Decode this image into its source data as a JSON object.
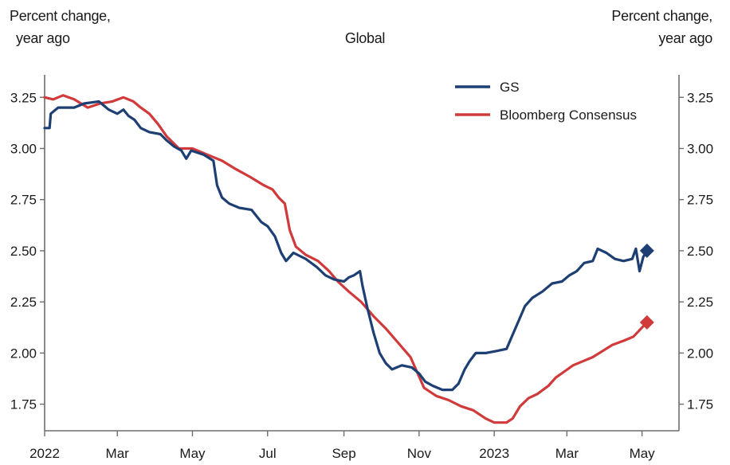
{
  "chart_data": {
    "type": "line",
    "title": "Global",
    "ylabel_left": [
      "Percent change,",
      "year ago"
    ],
    "ylabel_right": [
      "Percent change,",
      "year ago"
    ],
    "ylim": [
      1.62,
      3.36
    ],
    "yticks": [
      "3.25",
      "3.00",
      "2.75",
      "2.50",
      "2.25",
      "2.00",
      "1.75"
    ],
    "ytick_values": [
      3.25,
      3.0,
      2.75,
      2.5,
      2.25,
      2.0,
      1.75
    ],
    "x_domain": [
      "2022-01-01",
      "2023-05-31"
    ],
    "xticks": [
      {
        "date": "2022-01-01",
        "label": "2022"
      },
      {
        "date": "2022-03-01",
        "label": "Mar"
      },
      {
        "date": "2022-05-01",
        "label": "May"
      },
      {
        "date": "2022-07-01",
        "label": "Jul"
      },
      {
        "date": "2022-09-01",
        "label": "Sep"
      },
      {
        "date": "2022-11-01",
        "label": "Nov"
      },
      {
        "date": "2023-01-01",
        "label": "2023"
      },
      {
        "date": "2023-03-01",
        "label": "Mar"
      },
      {
        "date": "2023-05-01",
        "label": "May"
      }
    ],
    "legend_position": "top-right",
    "series": [
      {
        "name": "GS",
        "color": "#1d3f73",
        "points": [
          [
            "2022-01-01",
            3.1
          ],
          [
            "2022-01-05",
            3.1
          ],
          [
            "2022-01-06",
            3.17
          ],
          [
            "2022-01-12",
            3.2
          ],
          [
            "2022-01-25",
            3.2
          ],
          [
            "2022-02-02",
            3.22
          ],
          [
            "2022-02-14",
            3.23
          ],
          [
            "2022-02-22",
            3.19
          ],
          [
            "2022-03-01",
            3.17
          ],
          [
            "2022-03-06",
            3.19
          ],
          [
            "2022-03-10",
            3.16
          ],
          [
            "2022-03-15",
            3.14
          ],
          [
            "2022-03-20",
            3.1
          ],
          [
            "2022-03-27",
            3.08
          ],
          [
            "2022-04-05",
            3.07
          ],
          [
            "2022-04-10",
            3.04
          ],
          [
            "2022-04-16",
            3.01
          ],
          [
            "2022-04-22",
            2.99
          ],
          [
            "2022-04-26",
            2.95
          ],
          [
            "2022-04-30",
            2.99
          ],
          [
            "2022-05-10",
            2.97
          ],
          [
            "2022-05-18",
            2.94
          ],
          [
            "2022-05-21",
            2.82
          ],
          [
            "2022-05-25",
            2.76
          ],
          [
            "2022-05-31",
            2.73
          ],
          [
            "2022-06-08",
            2.71
          ],
          [
            "2022-06-18",
            2.7
          ],
          [
            "2022-06-26",
            2.64
          ],
          [
            "2022-07-01",
            2.62
          ],
          [
            "2022-07-07",
            2.57
          ],
          [
            "2022-07-12",
            2.49
          ],
          [
            "2022-07-16",
            2.45
          ],
          [
            "2022-07-22",
            2.49
          ],
          [
            "2022-08-01",
            2.46
          ],
          [
            "2022-08-10",
            2.42
          ],
          [
            "2022-08-17",
            2.38
          ],
          [
            "2022-08-24",
            2.36
          ],
          [
            "2022-09-01",
            2.35
          ],
          [
            "2022-09-05",
            2.37
          ],
          [
            "2022-09-09",
            2.38
          ],
          [
            "2022-09-14",
            2.4
          ],
          [
            "2022-09-16",
            2.33
          ],
          [
            "2022-09-20",
            2.22
          ],
          [
            "2022-09-25",
            2.1
          ],
          [
            "2022-09-30",
            2.0
          ],
          [
            "2022-10-05",
            1.95
          ],
          [
            "2022-10-10",
            1.92
          ],
          [
            "2022-10-18",
            1.94
          ],
          [
            "2022-10-26",
            1.93
          ],
          [
            "2022-11-01",
            1.9
          ],
          [
            "2022-11-06",
            1.86
          ],
          [
            "2022-11-12",
            1.84
          ],
          [
            "2022-11-20",
            1.82
          ],
          [
            "2022-11-28",
            1.82
          ],
          [
            "2022-12-03",
            1.85
          ],
          [
            "2022-12-08",
            1.92
          ],
          [
            "2022-12-12",
            1.96
          ],
          [
            "2022-12-17",
            2.0
          ],
          [
            "2022-12-25",
            2.0
          ],
          [
            "2023-01-03",
            2.01
          ],
          [
            "2023-01-11",
            2.02
          ],
          [
            "2023-01-16",
            2.09
          ],
          [
            "2023-01-21",
            2.16
          ],
          [
            "2023-01-26",
            2.23
          ],
          [
            "2023-02-01",
            2.27
          ],
          [
            "2023-02-09",
            2.3
          ],
          [
            "2023-02-17",
            2.34
          ],
          [
            "2023-02-25",
            2.35
          ],
          [
            "2023-03-03",
            2.38
          ],
          [
            "2023-03-09",
            2.4
          ],
          [
            "2023-03-15",
            2.44
          ],
          [
            "2023-03-22",
            2.45
          ],
          [
            "2023-03-26",
            2.51
          ],
          [
            "2023-04-02",
            2.49
          ],
          [
            "2023-04-09",
            2.46
          ],
          [
            "2023-04-16",
            2.45
          ],
          [
            "2023-04-23",
            2.46
          ],
          [
            "2023-04-26",
            2.51
          ],
          [
            "2023-04-29",
            2.4
          ],
          [
            "2023-05-02",
            2.47
          ],
          [
            "2023-05-05",
            2.5
          ]
        ],
        "end_marker": [
          "2023-05-05",
          2.5
        ]
      },
      {
        "name": "Bloomberg Consensus",
        "color": "#d03a3a",
        "points": [
          [
            "2022-01-01",
            3.25
          ],
          [
            "2022-01-08",
            3.24
          ],
          [
            "2022-01-16",
            3.26
          ],
          [
            "2022-01-25",
            3.24
          ],
          [
            "2022-02-05",
            3.2
          ],
          [
            "2022-02-15",
            3.22
          ],
          [
            "2022-02-25",
            3.23
          ],
          [
            "2022-03-06",
            3.25
          ],
          [
            "2022-03-14",
            3.23
          ],
          [
            "2022-03-20",
            3.2
          ],
          [
            "2022-03-27",
            3.17
          ],
          [
            "2022-04-03",
            3.12
          ],
          [
            "2022-04-10",
            3.06
          ],
          [
            "2022-04-20",
            3.0
          ],
          [
            "2022-05-01",
            3.0
          ],
          [
            "2022-05-13",
            2.97
          ],
          [
            "2022-05-25",
            2.94
          ],
          [
            "2022-06-05",
            2.9
          ],
          [
            "2022-06-17",
            2.86
          ],
          [
            "2022-06-28",
            2.82
          ],
          [
            "2022-07-05",
            2.8
          ],
          [
            "2022-07-10",
            2.76
          ],
          [
            "2022-07-15",
            2.73
          ],
          [
            "2022-07-19",
            2.6
          ],
          [
            "2022-07-24",
            2.52
          ],
          [
            "2022-08-01",
            2.48
          ],
          [
            "2022-08-11",
            2.45
          ],
          [
            "2022-08-20",
            2.4
          ],
          [
            "2022-08-27",
            2.35
          ],
          [
            "2022-09-05",
            2.3
          ],
          [
            "2022-09-15",
            2.25
          ],
          [
            "2022-09-25",
            2.18
          ],
          [
            "2022-10-05",
            2.12
          ],
          [
            "2022-10-15",
            2.05
          ],
          [
            "2022-10-25",
            1.98
          ],
          [
            "2022-11-05",
            1.83
          ],
          [
            "2022-11-15",
            1.79
          ],
          [
            "2022-11-25",
            1.77
          ],
          [
            "2022-12-05",
            1.74
          ],
          [
            "2022-12-15",
            1.72
          ],
          [
            "2022-12-25",
            1.68
          ],
          [
            "2023-01-01",
            1.66
          ],
          [
            "2023-01-11",
            1.66
          ],
          [
            "2023-01-16",
            1.68
          ],
          [
            "2023-01-22",
            1.74
          ],
          [
            "2023-01-29",
            1.78
          ],
          [
            "2023-02-05",
            1.8
          ],
          [
            "2023-02-14",
            1.84
          ],
          [
            "2023-02-20",
            1.88
          ],
          [
            "2023-02-27",
            1.91
          ],
          [
            "2023-03-06",
            1.94
          ],
          [
            "2023-03-14",
            1.96
          ],
          [
            "2023-03-22",
            1.98
          ],
          [
            "2023-03-30",
            2.01
          ],
          [
            "2023-04-07",
            2.04
          ],
          [
            "2023-04-16",
            2.06
          ],
          [
            "2023-04-24",
            2.08
          ],
          [
            "2023-05-05",
            2.15
          ]
        ],
        "end_marker": [
          "2023-05-05",
          2.15
        ]
      }
    ]
  }
}
